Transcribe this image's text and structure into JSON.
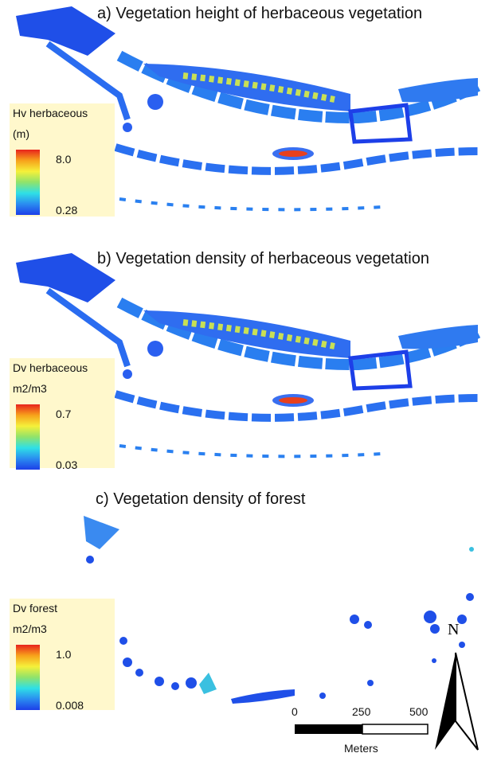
{
  "panels": [
    {
      "title": "a) Vegetation height of herbaceous vegetation",
      "legend": {
        "title": "Hv herbaceous",
        "unit": "(m)",
        "max": "8.0",
        "min": "0.28"
      }
    },
    {
      "title": "b) Vegetation density of herbaceous vegetation",
      "legend": {
        "title": "Dv herbaceous",
        "unit": "m2/m3",
        "max": "0.7",
        "min": "0.03"
      }
    },
    {
      "title": "c) Vegetation density of forest",
      "legend": {
        "title": "Dv forest",
        "unit": "m2/m3",
        "max": "1.0",
        "min": "0.008"
      }
    }
  ],
  "scale_bar": {
    "labels": [
      "0",
      "250",
      "500"
    ],
    "unit": "Meters"
  },
  "north_arrow": "N"
}
